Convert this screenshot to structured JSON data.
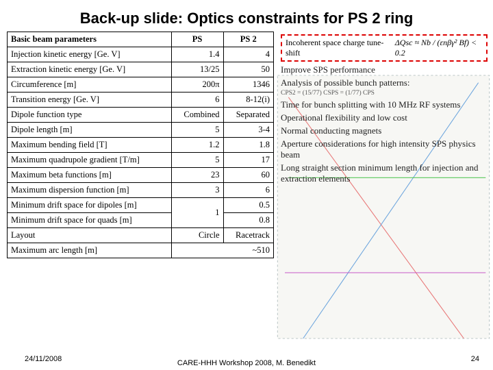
{
  "title": "Back-up slide: Optics constraints for PS 2 ring",
  "table": {
    "header": {
      "param": "Basic beam parameters",
      "c1": "PS",
      "c2": "PS 2"
    },
    "rows": [
      {
        "p": "Injection kinetic energy [Ge. V]",
        "a": "1.4",
        "b": "4"
      },
      {
        "p": "Extraction kinetic energy [Ge. V]",
        "a": "13/25",
        "b": "50"
      },
      {
        "p": "Circumference [m]",
        "a": "200π",
        "b": "1346"
      },
      {
        "p": "Transition energy [Ge. V]",
        "a": "6",
        "b": "8-12(i)"
      },
      {
        "p": "Dipole function type",
        "a": "Combined",
        "b": "Separated"
      },
      {
        "p": "Dipole length [m]",
        "a": "5",
        "b": "3-4"
      },
      {
        "p": "Maximum bending field [T]",
        "a": "1.2",
        "b": "1.8"
      },
      {
        "p": "Maximum quadrupole gradient [T/m]",
        "a": "5",
        "b": "17"
      },
      {
        "p": "Maximum beta functions [m]",
        "a": "23",
        "b": "60"
      },
      {
        "p": "Maximum dispersion function [m]",
        "a": "3",
        "b": "6"
      }
    ],
    "mergedA": {
      "p1": "Minimum drift space for dipoles [m]",
      "p2": "Minimum drift space for quads [m]",
      "a": "1",
      "b1": "0.5",
      "b2": "0.8"
    },
    "layout": {
      "p": "Layout",
      "a": "Circle",
      "b": "Racetrack"
    },
    "arc": {
      "p": "Maximum arc length [m]",
      "b": "~510"
    }
  },
  "right": {
    "tune_label": "Incoherent space charge tune-shift",
    "tune_formula": "ΔQsc ≈ Nb / (εnβγ² Bf) < 0.2",
    "lines": [
      "Improve SPS performance",
      "Analysis of possible bunch patterns:",
      "CPS2 = (15/77) CSPS = (1/77) CPS",
      "Time for bunch splitting with 10 MHz RF systems",
      "Operational flexibility and low cost",
      "Normal conducting magnets",
      "Aperture considerations for high intensity SPS physics beam",
      "Long straight section minimum length for injection and extraction elements"
    ]
  },
  "footer": {
    "date": "24/11/2008",
    "ctr": "CARE-HHH Workshop 2008, M. Benedikt",
    "pg": "24"
  }
}
